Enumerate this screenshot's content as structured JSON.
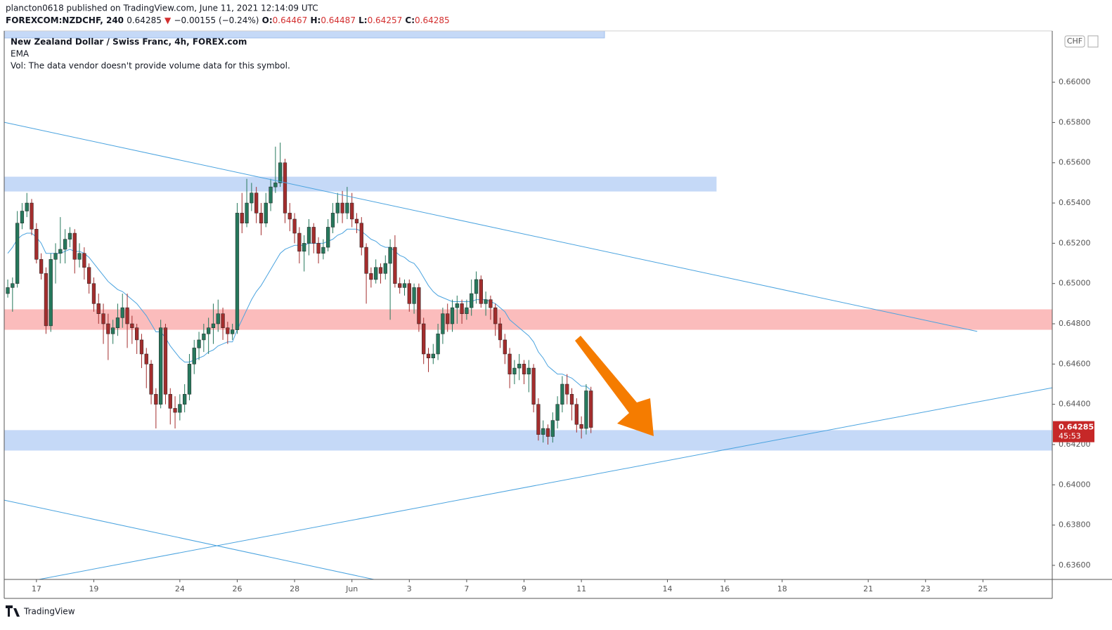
{
  "chart_data": {
    "type": "candlestick",
    "header": {
      "publisher": "plancton0618 published on TradingView.com, June 11, 2021 12:14:09 UTC",
      "quote": [
        "FOREXCOM:NZDCHF, 240",
        "0.64285",
        "▼",
        "−0.00155 (−0.24%)",
        "O:",
        "0.64467",
        "H:",
        "0.64487",
        "L:",
        "0.64257",
        "C:",
        "0.64285"
      ]
    },
    "title": "New Zealand Dollar / Swiss Franc, 4h, FOREX.com",
    "indicator": "EMA",
    "volume_note": "Vol: The data vendor doesn't provide volume data for this symbol.",
    "currency": "CHF",
    "brand": "TradingView",
    "countdown": "45:53",
    "last_price": {
      "value": 0.64285,
      "label": "0.64285"
    },
    "up_color": "#26785c",
    "down_color": "#a32d2d",
    "ema_color": "#4aa3df",
    "last_color": "#c62828",
    "xlim": [
      -0.74,
      218.5
    ],
    "ylim": [
      0.6353,
      0.66255
    ],
    "xticks": [
      {
        "value": 6,
        "label": "17"
      },
      {
        "value": 18,
        "label": "19"
      },
      {
        "value": 36,
        "label": "24"
      },
      {
        "value": 48,
        "label": "26"
      },
      {
        "value": 60,
        "label": "28"
      },
      {
        "value": 72,
        "label": "Jun"
      },
      {
        "value": 84,
        "label": "3"
      },
      {
        "value": 96,
        "label": "7"
      },
      {
        "value": 108,
        "label": "9"
      },
      {
        "value": 120,
        "label": "11"
      },
      {
        "value": 138,
        "label": "14"
      },
      {
        "value": 150,
        "label": "16"
      },
      {
        "value": 162,
        "label": "18"
      },
      {
        "value": 180,
        "label": "21"
      },
      {
        "value": 192,
        "label": "23"
      },
      {
        "value": 204,
        "label": "25"
      }
    ],
    "yticks": [
      {
        "value": 0.636,
        "label": "0.63600"
      },
      {
        "value": 0.638,
        "label": "0.63800"
      },
      {
        "value": 0.64,
        "label": "0.64000"
      },
      {
        "value": 0.642,
        "label": "0.64200"
      },
      {
        "value": 0.644,
        "label": "0.64400"
      },
      {
        "value": 0.646,
        "label": "0.64600"
      },
      {
        "value": 0.648,
        "label": "0.64800"
      },
      {
        "value": 0.65,
        "label": "0.65000"
      },
      {
        "value": 0.652,
        "label": "0.65200"
      },
      {
        "value": 0.654,
        "label": "0.65400"
      },
      {
        "value": 0.656,
        "label": "0.65600"
      },
      {
        "value": 0.658,
        "label": "0.65800"
      },
      {
        "value": 0.66,
        "label": "0.66000"
      }
    ],
    "x": [
      0,
      1,
      2,
      3,
      4,
      5,
      6,
      7,
      8,
      9,
      10,
      11,
      12,
      13,
      14,
      15,
      16,
      17,
      18,
      19,
      20,
      21,
      22,
      23,
      24,
      25,
      26,
      27,
      28,
      29,
      30,
      31,
      32,
      33,
      34,
      35,
      36,
      37,
      38,
      39,
      40,
      41,
      42,
      43,
      44,
      45,
      46,
      47,
      48,
      49,
      50,
      51,
      52,
      53,
      54,
      55,
      56,
      57,
      58,
      59,
      60,
      61,
      62,
      63,
      64,
      65,
      66,
      67,
      68,
      69,
      70,
      71,
      72,
      73,
      74,
      75,
      76,
      77,
      78,
      79,
      80,
      81,
      82,
      83,
      84,
      85,
      86,
      87,
      88,
      89,
      90,
      91,
      92,
      93,
      94,
      95,
      96,
      97,
      98,
      99,
      100,
      101,
      102,
      103,
      104,
      105,
      106,
      107,
      108,
      109,
      110,
      111,
      112,
      113,
      114,
      115,
      116,
      117,
      118,
      119,
      120,
      121,
      122
    ],
    "ohlc": [
      [
        0.6495,
        0.6502,
        0.6493,
        0.6498
      ],
      [
        0.6498,
        0.6503,
        0.6486,
        0.65
      ],
      [
        0.65,
        0.6536,
        0.6498,
        0.653
      ],
      [
        0.653,
        0.654,
        0.6527,
        0.6536
      ],
      [
        0.6536,
        0.6545,
        0.6533,
        0.654
      ],
      [
        0.654,
        0.6542,
        0.6524,
        0.6527
      ],
      [
        0.6527,
        0.653,
        0.651,
        0.6512
      ],
      [
        0.6512,
        0.6515,
        0.6502,
        0.6505
      ],
      [
        0.6505,
        0.6508,
        0.6475,
        0.6479
      ],
      [
        0.6479,
        0.6515,
        0.6476,
        0.6512
      ],
      [
        0.6512,
        0.652,
        0.65,
        0.6515
      ],
      [
        0.6515,
        0.6533,
        0.651,
        0.6517
      ],
      [
        0.6517,
        0.6527,
        0.651,
        0.6522
      ],
      [
        0.6522,
        0.6528,
        0.6518,
        0.6525
      ],
      [
        0.6525,
        0.6527,
        0.6505,
        0.6512
      ],
      [
        0.6512,
        0.652,
        0.6508,
        0.6515
      ],
      [
        0.6515,
        0.6518,
        0.6502,
        0.6508
      ],
      [
        0.6508,
        0.651,
        0.6495,
        0.65
      ],
      [
        0.65,
        0.6503,
        0.6486,
        0.649
      ],
      [
        0.649,
        0.6495,
        0.648,
        0.6485
      ],
      [
        0.6485,
        0.649,
        0.647,
        0.648
      ],
      [
        0.648,
        0.6485,
        0.6462,
        0.6475
      ],
      [
        0.6475,
        0.6482,
        0.647,
        0.6478
      ],
      [
        0.6478,
        0.649,
        0.6474,
        0.6483
      ],
      [
        0.6483,
        0.6495,
        0.6478,
        0.6488
      ],
      [
        0.6488,
        0.6495,
        0.6468,
        0.648
      ],
      [
        0.648,
        0.6484,
        0.647,
        0.6478
      ],
      [
        0.6478,
        0.648,
        0.6465,
        0.6472
      ],
      [
        0.6472,
        0.6475,
        0.6458,
        0.6465
      ],
      [
        0.6465,
        0.6468,
        0.6448,
        0.646
      ],
      [
        0.646,
        0.6462,
        0.644,
        0.6445
      ],
      [
        0.6445,
        0.6448,
        0.6428,
        0.644
      ],
      [
        0.644,
        0.6482,
        0.6438,
        0.6478
      ],
      [
        0.6478,
        0.648,
        0.644,
        0.6445
      ],
      [
        0.6445,
        0.6448,
        0.643,
        0.6438
      ],
      [
        0.6438,
        0.6444,
        0.6428,
        0.6436
      ],
      [
        0.6436,
        0.6445,
        0.6432,
        0.644
      ],
      [
        0.644,
        0.645,
        0.6436,
        0.6445
      ],
      [
        0.6445,
        0.6465,
        0.6442,
        0.646
      ],
      [
        0.646,
        0.6472,
        0.6455,
        0.6468
      ],
      [
        0.6468,
        0.6476,
        0.6462,
        0.6472
      ],
      [
        0.6472,
        0.648,
        0.6466,
        0.6475
      ],
      [
        0.6475,
        0.6483,
        0.6465,
        0.6478
      ],
      [
        0.6478,
        0.649,
        0.647,
        0.648
      ],
      [
        0.648,
        0.6492,
        0.6476,
        0.6485
      ],
      [
        0.6485,
        0.6488,
        0.6472,
        0.6478
      ],
      [
        0.6478,
        0.6481,
        0.647,
        0.6475
      ],
      [
        0.6475,
        0.648,
        0.6472,
        0.6477
      ],
      [
        0.6477,
        0.654,
        0.6475,
        0.6535
      ],
      [
        0.6535,
        0.6545,
        0.6525,
        0.653
      ],
      [
        0.653,
        0.6552,
        0.6528,
        0.654
      ],
      [
        0.654,
        0.655,
        0.6536,
        0.6545
      ],
      [
        0.6545,
        0.6548,
        0.653,
        0.6535
      ],
      [
        0.6535,
        0.654,
        0.6524,
        0.653
      ],
      [
        0.653,
        0.6545,
        0.6528,
        0.654
      ],
      [
        0.654,
        0.6552,
        0.6536,
        0.6548
      ],
      [
        0.6548,
        0.6568,
        0.6545,
        0.655
      ],
      [
        0.655,
        0.657,
        0.6548,
        0.656
      ],
      [
        0.656,
        0.6562,
        0.653,
        0.6535
      ],
      [
        0.6535,
        0.654,
        0.6526,
        0.6532
      ],
      [
        0.6532,
        0.6535,
        0.652,
        0.6525
      ],
      [
        0.6525,
        0.6528,
        0.651,
        0.6516
      ],
      [
        0.6516,
        0.6524,
        0.6506,
        0.652
      ],
      [
        0.652,
        0.6532,
        0.6514,
        0.6528
      ],
      [
        0.6528,
        0.653,
        0.6515,
        0.652
      ],
      [
        0.652,
        0.6523,
        0.651,
        0.6515
      ],
      [
        0.6515,
        0.6522,
        0.6512,
        0.6518
      ],
      [
        0.6518,
        0.6532,
        0.6516,
        0.6528
      ],
      [
        0.6528,
        0.654,
        0.6525,
        0.6535
      ],
      [
        0.6535,
        0.6545,
        0.653,
        0.654
      ],
      [
        0.654,
        0.6546,
        0.653,
        0.6535
      ],
      [
        0.6535,
        0.6548,
        0.6532,
        0.654
      ],
      [
        0.654,
        0.6545,
        0.6528,
        0.6532
      ],
      [
        0.6532,
        0.6535,
        0.6525,
        0.653
      ],
      [
        0.653,
        0.6533,
        0.6514,
        0.6518
      ],
      [
        0.6518,
        0.652,
        0.649,
        0.6505
      ],
      [
        0.6505,
        0.6508,
        0.6498,
        0.6502
      ],
      [
        0.6502,
        0.6512,
        0.65,
        0.6508
      ],
      [
        0.6508,
        0.651,
        0.65,
        0.6505
      ],
      [
        0.6505,
        0.6514,
        0.6502,
        0.651
      ],
      [
        0.651,
        0.6522,
        0.6482,
        0.6518
      ],
      [
        0.6518,
        0.6524,
        0.6498,
        0.65
      ],
      [
        0.65,
        0.6503,
        0.6495,
        0.6498
      ],
      [
        0.6498,
        0.6502,
        0.6494,
        0.65
      ],
      [
        0.65,
        0.6502,
        0.6486,
        0.649
      ],
      [
        0.649,
        0.65,
        0.6485,
        0.6498
      ],
      [
        0.6498,
        0.65,
        0.6476,
        0.648
      ],
      [
        0.648,
        0.6483,
        0.646,
        0.6465
      ],
      [
        0.6465,
        0.6468,
        0.6456,
        0.6463
      ],
      [
        0.6463,
        0.647,
        0.646,
        0.6465
      ],
      [
        0.6465,
        0.648,
        0.6462,
        0.6475
      ],
      [
        0.6475,
        0.6488,
        0.647,
        0.6485
      ],
      [
        0.6485,
        0.649,
        0.6476,
        0.648
      ],
      [
        0.648,
        0.6492,
        0.6476,
        0.6488
      ],
      [
        0.6488,
        0.6494,
        0.648,
        0.649
      ],
      [
        0.649,
        0.6492,
        0.648,
        0.6485
      ],
      [
        0.6485,
        0.6492,
        0.6482,
        0.6488
      ],
      [
        0.6488,
        0.6502,
        0.6484,
        0.6495
      ],
      [
        0.6495,
        0.6506,
        0.649,
        0.6502
      ],
      [
        0.6502,
        0.6504,
        0.6488,
        0.649
      ],
      [
        0.649,
        0.6496,
        0.6484,
        0.6492
      ],
      [
        0.6492,
        0.6494,
        0.6482,
        0.6488
      ],
      [
        0.6488,
        0.649,
        0.6474,
        0.648
      ],
      [
        0.648,
        0.6483,
        0.6468,
        0.6472
      ],
      [
        0.6472,
        0.6475,
        0.646,
        0.6465
      ],
      [
        0.6465,
        0.6468,
        0.6448,
        0.6455
      ],
      [
        0.6455,
        0.6462,
        0.645,
        0.6458
      ],
      [
        0.6458,
        0.6465,
        0.6452,
        0.646
      ],
      [
        0.646,
        0.6462,
        0.645,
        0.6455
      ],
      [
        0.6455,
        0.6462,
        0.6446,
        0.6458
      ],
      [
        0.6458,
        0.646,
        0.6436,
        0.644
      ],
      [
        0.644,
        0.6443,
        0.6422,
        0.6425
      ],
      [
        0.6425,
        0.6432,
        0.6421,
        0.6428
      ],
      [
        0.6428,
        0.643,
        0.642,
        0.6424
      ],
      [
        0.6424,
        0.6436,
        0.6421,
        0.6432
      ],
      [
        0.6432,
        0.6444,
        0.6428,
        0.644
      ],
      [
        0.644,
        0.6454,
        0.6436,
        0.645
      ],
      [
        0.645,
        0.6455,
        0.644,
        0.6445
      ],
      [
        0.6445,
        0.6448,
        0.6432,
        0.644
      ],
      [
        0.644,
        0.6443,
        0.6426,
        0.643
      ],
      [
        0.643,
        0.6434,
        0.6423,
        0.6428
      ],
      [
        0.6428,
        0.645,
        0.6425,
        0.64467
      ],
      [
        0.64467,
        0.64487,
        0.64257,
        0.64285
      ]
    ],
    "ema": [
      0.6515,
      0.6518,
      0.6522,
      0.6524,
      0.6525,
      0.6525,
      0.6523,
      0.652,
      0.6515,
      0.6515,
      0.6515,
      0.6515,
      0.6516,
      0.6517,
      0.6516,
      0.6516,
      0.6515,
      0.6513,
      0.651,
      0.6507,
      0.6504,
      0.6501,
      0.6499,
      0.6497,
      0.6496,
      0.6494,
      0.6492,
      0.649,
      0.6487,
      0.6484,
      0.648,
      0.6476,
      0.6476,
      0.6473,
      0.6469,
      0.6466,
      0.6463,
      0.6461,
      0.6461,
      0.6462,
      0.6463,
      0.6464,
      0.6466,
      0.6467,
      0.6469,
      0.647,
      0.6471,
      0.6471,
      0.6477,
      0.6482,
      0.6487,
      0.6492,
      0.6496,
      0.6499,
      0.6503,
      0.6507,
      0.6511,
      0.6515,
      0.6517,
      0.6518,
      0.6519,
      0.6519,
      0.6519,
      0.652,
      0.652,
      0.652,
      0.652,
      0.6521,
      0.6522,
      0.6524,
      0.6525,
      0.6527,
      0.6527,
      0.6527,
      0.6526,
      0.6524,
      0.6522,
      0.6521,
      0.6519,
      0.6518,
      0.6518,
      0.6516,
      0.6514,
      0.6513,
      0.6511,
      0.651,
      0.6507,
      0.6503,
      0.6499,
      0.6496,
      0.6494,
      0.6493,
      0.6492,
      0.6491,
      0.6491,
      0.6491,
      0.6491,
      0.6491,
      0.6492,
      0.6492,
      0.6492,
      0.6491,
      0.649,
      0.6488,
      0.6486,
      0.6482,
      0.648,
      0.6478,
      0.6476,
      0.6474,
      0.6471,
      0.6466,
      0.6463,
      0.6459,
      0.6457,
      0.6455,
      0.6455,
      0.6454,
      0.6453,
      0.6451,
      0.6449,
      0.6449,
      0.6447
    ],
    "zones": [
      {
        "xlim": [
          -0.74,
          148.2
        ],
        "ylim": [
          0.65459,
          0.65529
        ],
        "color": "#c5d9f7"
      },
      {
        "xlim": [
          -0.74,
          218.5
        ],
        "ylim": [
          0.64772,
          0.6487
        ],
        "color": "#fbbcbc"
      },
      {
        "xlim": [
          -0.74,
          218.5
        ],
        "ylim": [
          0.64172,
          0.6427
        ],
        "color": "#c5d9f7"
      }
    ],
    "trendlines": [
      {
        "x": [
          -0.74,
          202.8
        ],
        "y": [
          0.65801,
          0.64762
        ],
        "color": "#4aa3df"
      },
      {
        "x": [
          6.5,
          218.5
        ],
        "y": [
          0.6353,
          0.64482
        ],
        "color": "#4aa3df"
      },
      {
        "x": [
          -0.74,
          76.6
        ],
        "y": [
          0.63924,
          0.6353
        ],
        "color": "#4aa3df"
      }
    ]
  }
}
